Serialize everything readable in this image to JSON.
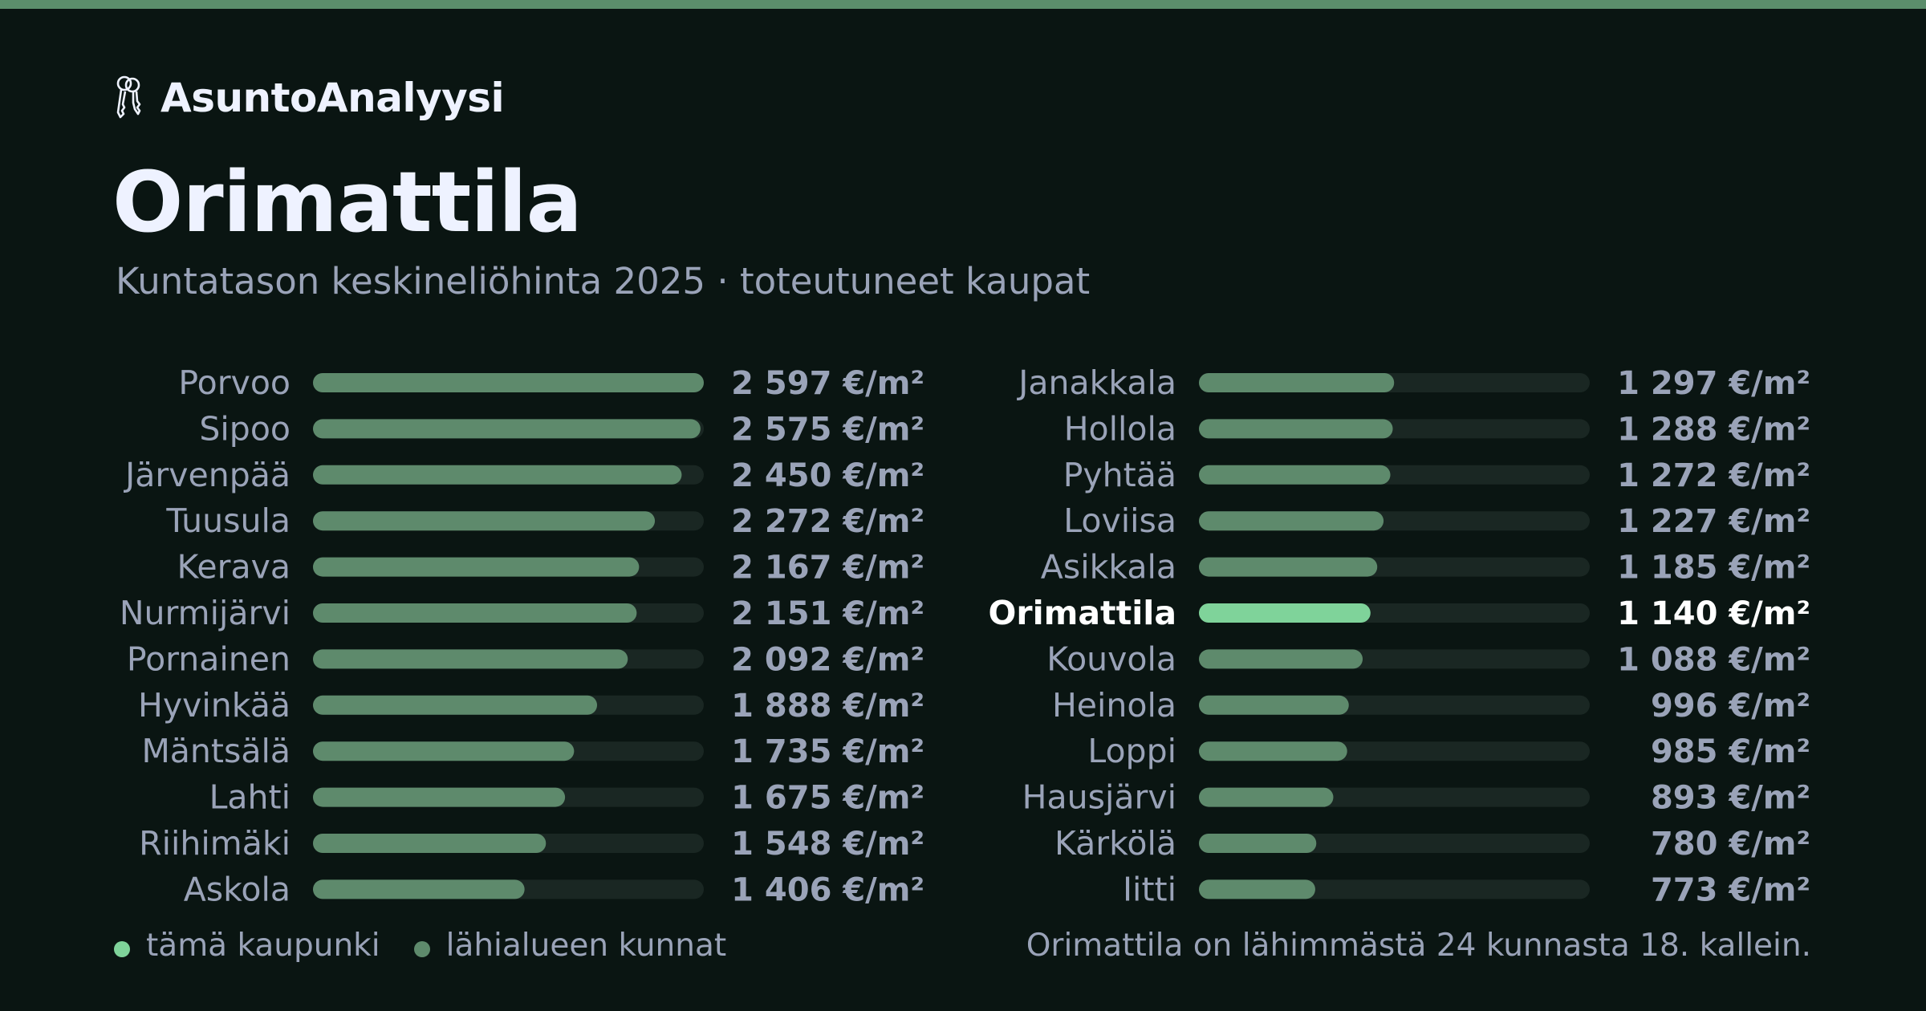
{
  "header": {
    "brand": "AsuntoAnalyysi",
    "brand_icon": "keys-icon",
    "title": "Orimattila",
    "subtitle": "Kuntatason keskineliöhinta 2025 · toteutuneet kaupat"
  },
  "colors": {
    "background": "#0a1512",
    "accent_bar": "#5b8e6b",
    "bar_default": "#5e8a6c",
    "bar_highlight": "#7fd39a",
    "bar_track": "#1a2723",
    "label_default": "#9aa3b8",
    "label_highlight": "#ffffff"
  },
  "chart_data": {
    "type": "bar",
    "orientation": "horizontal",
    "unit": "€/m²",
    "xlim": [
      0,
      2597
    ],
    "highlight": "Orimattila",
    "categories": [
      "Porvoo",
      "Sipoo",
      "Järvenpää",
      "Tuusula",
      "Kerava",
      "Nurmijärvi",
      "Pornainen",
      "Hyvinkää",
      "Mäntsälä",
      "Lahti",
      "Riihimäki",
      "Askola",
      "Janakkala",
      "Hollola",
      "Pyhtää",
      "Loviisa",
      "Asikkala",
      "Orimattila",
      "Kouvola",
      "Heinola",
      "Loppi",
      "Hausjärvi",
      "Kärkölä",
      "Iitti"
    ],
    "values": [
      2597,
      2575,
      2450,
      2272,
      2167,
      2151,
      2092,
      1888,
      1735,
      1675,
      1548,
      1406,
      1297,
      1288,
      1272,
      1227,
      1185,
      1140,
      1088,
      996,
      985,
      893,
      780,
      773
    ],
    "value_labels": [
      "2 597 €/m²",
      "2 575 €/m²",
      "2 450 €/m²",
      "2 272 €/m²",
      "2 167 €/m²",
      "2 151 €/m²",
      "2 092 €/m²",
      "1 888 €/m²",
      "1 735 €/m²",
      "1 675 €/m²",
      "1 548 €/m²",
      "1 406 €/m²",
      "1 297 €/m²",
      "1 288 €/m²",
      "1 272 €/m²",
      "1 227 €/m²",
      "1 185 €/m²",
      "1 140 €/m²",
      "1 088 €/m²",
      "996 €/m²",
      "985 €/m²",
      "893 €/m²",
      "780 €/m²",
      "773 €/m²"
    ],
    "legend": [
      {
        "label": "tämä kaupunki",
        "color": "#7fd39a"
      },
      {
        "label": "lähialueen kunnat",
        "color": "#5e8a6c"
      }
    ]
  },
  "footnote": "Orimattila on lähimmästä 24 kunnasta 18. kallein."
}
